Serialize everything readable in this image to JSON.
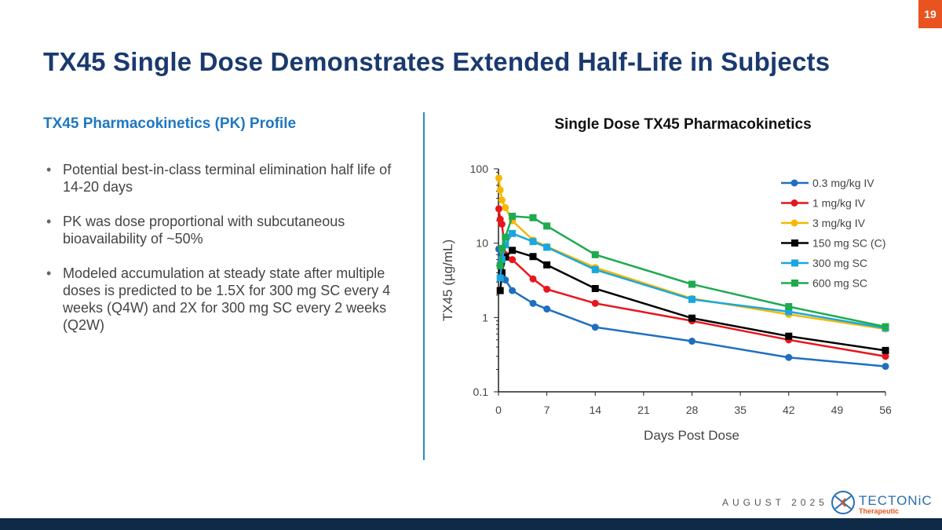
{
  "page_number": "19",
  "title": "TX45 Single Dose Demonstrates Extended Half-Life in Subjects",
  "left": {
    "heading": "TX45 Pharmacokinetics (PK) Profile",
    "bullets": [
      "Potential best-in-class terminal elimination half life of 14-20 days",
      "PK was dose proportional with subcutaneous bioavailability of ~50%",
      "Modeled accumulation at steady state after multiple doses is predicted to be 1.5X for 300 mg SC every 4 weeks (Q4W) and 2X for 300 mg SC every 2 weeks (Q2W)"
    ]
  },
  "footer": {
    "date": "AUGUST 2025",
    "logo_text": "TECTONiC",
    "logo_sub": "Therapeutic"
  },
  "colors": {
    "title": "#1a3a6e",
    "accent": "#e8531f",
    "footer": "#0e2a47"
  },
  "chart_data": {
    "type": "line",
    "title": "Single Dose TX45 Pharmacokinetics",
    "xlabel": "Days Post Dose",
    "ylabel": "TX45 (µg/mL)",
    "xlim": [
      0,
      56
    ],
    "ylim": [
      0.1,
      100
    ],
    "yscale": "log",
    "xticks": [
      0,
      7,
      14,
      21,
      28,
      35,
      42,
      49,
      56
    ],
    "yticks": [
      0.1,
      1,
      10,
      100
    ],
    "ytick_labels": [
      "0.1",
      "1",
      "10",
      "100"
    ],
    "grid": false,
    "legend": "top-right",
    "series": [
      {
        "name": "0.3 mg/kg IV",
        "color": "#1f6fbf",
        "marker": "circle",
        "x": [
          0.05,
          0.5,
          1,
          2,
          5,
          7,
          14,
          28,
          42,
          56
        ],
        "y": [
          8.3,
          3.3,
          3.2,
          2.3,
          1.55,
          1.3,
          0.74,
          0.48,
          0.29,
          0.22
        ]
      },
      {
        "name": "1 mg/kg IV",
        "color": "#e8161b",
        "marker": "circle",
        "x": [
          0.05,
          0.25,
          0.5,
          1,
          2,
          5,
          7,
          14,
          28,
          42,
          56
        ],
        "y": [
          29,
          21,
          18,
          7,
          6,
          3.3,
          2.4,
          1.55,
          0.9,
          0.5,
          0.3
        ]
      },
      {
        "name": "3 mg/kg IV",
        "color": "#f5b800",
        "marker": "circle",
        "x": [
          0.05,
          0.25,
          0.5,
          1,
          2,
          5,
          7,
          14,
          28,
          42,
          56
        ],
        "y": [
          75,
          52,
          38,
          30,
          20,
          11,
          9,
          4.7,
          1.8,
          1.1,
          0.7
        ]
      },
      {
        "name": "150 mg SC (C)",
        "color": "#000000",
        "marker": "square",
        "x": [
          0.25,
          0.5,
          1,
          2,
          5,
          7,
          14,
          28,
          42,
          56
        ],
        "y": [
          2.3,
          4,
          6.5,
          8,
          6.6,
          5.1,
          2.45,
          0.98,
          0.56,
          0.36
        ]
      },
      {
        "name": "300 mg SC",
        "color": "#1aa7e0",
        "marker": "square",
        "x": [
          0.25,
          0.5,
          1,
          2,
          5,
          7,
          14,
          28,
          42,
          56
        ],
        "y": [
          3.4,
          6,
          9.5,
          13.5,
          10.5,
          8.8,
          4.4,
          1.75,
          1.2,
          0.72
        ]
      },
      {
        "name": "600 mg SC",
        "color": "#1faa4f",
        "marker": "square",
        "x": [
          0.25,
          0.5,
          1,
          2,
          5,
          7,
          14,
          28,
          42,
          56
        ],
        "y": [
          5,
          8.5,
          12,
          23,
          22,
          17,
          7,
          2.8,
          1.4,
          0.75
        ]
      }
    ]
  }
}
